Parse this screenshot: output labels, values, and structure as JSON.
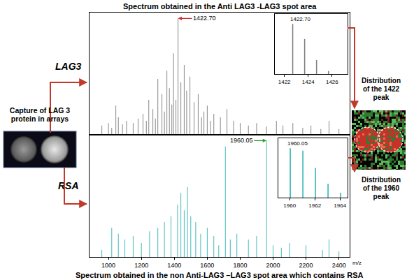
{
  "chart_data": [
    {
      "type": "bar",
      "title": "Spectrum obtained in the Anti LAG3 -LAG3 spot area",
      "ylabel": "LAG3",
      "color": "#7f7f7f",
      "x": [
        960,
        1000,
        1020,
        1045,
        1060,
        1085,
        1110,
        1150,
        1180,
        1210,
        1230,
        1245,
        1270,
        1285,
        1300,
        1325,
        1340,
        1355,
        1370,
        1385,
        1395,
        1410,
        1422.7,
        1440,
        1460,
        1475,
        1495,
        1520,
        1545,
        1565,
        1580,
        1600,
        1620,
        1640,
        1680,
        1720,
        1760,
        1800,
        1850,
        1900,
        1960,
        2020,
        2060,
        2120,
        2180,
        2230,
        2290,
        2340,
        2400
      ],
      "values": [
        8,
        10,
        6,
        25,
        15,
        9,
        12,
        10,
        14,
        18,
        12,
        30,
        22,
        14,
        48,
        35,
        20,
        55,
        40,
        26,
        70,
        30,
        100,
        45,
        60,
        38,
        50,
        28,
        35,
        15,
        20,
        25,
        12,
        18,
        15,
        22,
        12,
        10,
        8,
        10,
        7,
        12,
        8,
        10,
        6,
        8,
        5,
        12,
        5
      ],
      "xlim": [
        885,
        2465
      ],
      "ylim": [
        0,
        105
      ],
      "tick_labels": false,
      "annotations": [
        {
          "text": "1422.70",
          "x": 1422.7,
          "y": 100
        }
      ]
    },
    {
      "type": "bar",
      "title": "Spectrum obtained in the non Anti-LAG3 –LAG3 spot area which contains RSA",
      "ylabel": "RSA",
      "xlabel": "m/z",
      "color": "#3ab5b5",
      "x": [
        960,
        1020,
        1060,
        1100,
        1150,
        1200,
        1250,
        1300,
        1340,
        1380,
        1420,
        1440,
        1460,
        1480,
        1500,
        1530,
        1560,
        1600,
        1640,
        1670,
        1710,
        1740,
        1780,
        1850,
        1900,
        1960.05,
        2000,
        2050,
        2100,
        2200,
        2300,
        2340,
        2400
      ],
      "values": [
        6,
        25,
        20,
        15,
        18,
        12,
        22,
        25,
        30,
        35,
        45,
        55,
        40,
        60,
        35,
        30,
        20,
        25,
        18,
        10,
        95,
        15,
        20,
        15,
        18,
        100,
        10,
        8,
        12,
        10,
        6,
        15,
        5
      ],
      "xlim": [
        885,
        2465
      ],
      "ylim": [
        0,
        105
      ],
      "xticks": [
        1000,
        1200,
        1400,
        1600,
        1800,
        2000,
        2200,
        2400
      ],
      "tick_labels": "x",
      "annotations": [
        {
          "text": "1960.05",
          "x": 1960.05,
          "y": 100
        }
      ]
    },
    {
      "type": "bar",
      "color": "#7f7f7f",
      "x": [
        1422.7,
        1423.7,
        1424.7,
        1425.7
      ],
      "values": [
        100,
        70,
        28,
        6
      ],
      "xlim": [
        1421.2,
        1427.3
      ],
      "ylim": [
        0,
        120
      ],
      "xticks": [
        1422,
        1424,
        1426
      ],
      "tick_labels": "x",
      "annotations": [
        {
          "text": "1422.70",
          "x": 1422.7,
          "y": 100
        }
      ]
    },
    {
      "type": "bar",
      "color": "#3ab5b5",
      "x": [
        1960.05,
        1961.05,
        1962.05,
        1963.05,
        1964.05
      ],
      "values": [
        100,
        95,
        60,
        28,
        10
      ],
      "xlim": [
        1959.1,
        1964.6
      ],
      "ylim": [
        0,
        120
      ],
      "xticks": [
        1960,
        1962,
        1964
      ],
      "tick_labels": "x",
      "annotations": [
        {
          "text": "1960.05",
          "x": 1960.05,
          "y": 100
        }
      ]
    }
  ],
  "figure": {
    "left_label": "Capture of LAG 3 protein in arrays",
    "right_labels": [
      "Distribution of the 1422 peak",
      "Distribution of the 1960 peak"
    ]
  }
}
